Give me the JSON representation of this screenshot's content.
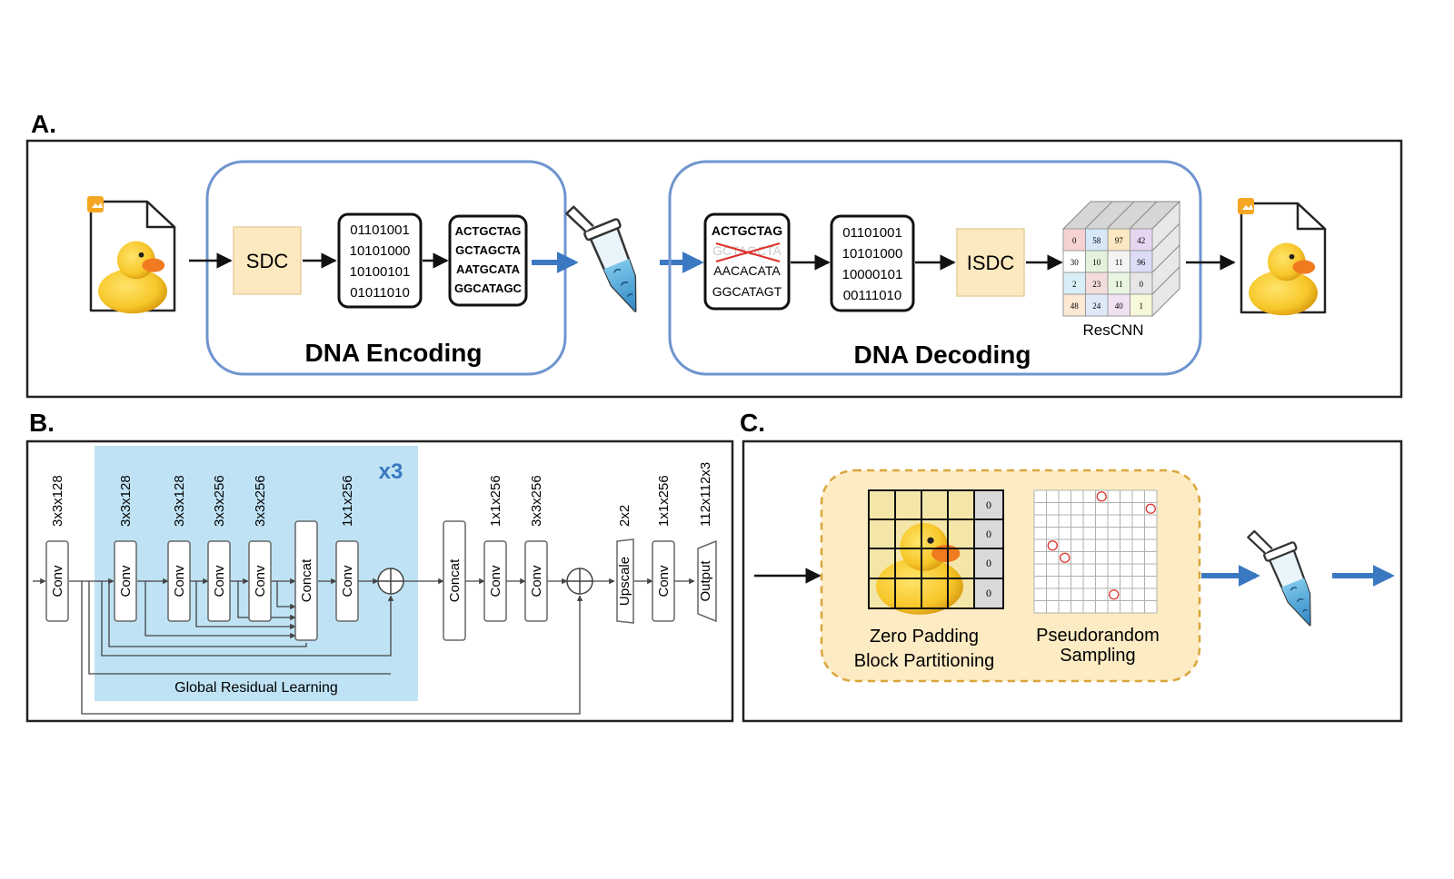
{
  "panels": {
    "a": {
      "label": "A."
    },
    "b": {
      "label": "B."
    },
    "c": {
      "label": "C."
    }
  },
  "encoding": {
    "title": "DNA Encoding",
    "sdc": "SDC",
    "binary": [
      "01101001",
      "10101000",
      "10100101",
      "01011010"
    ],
    "dna": [
      "ACTGCTAG",
      "GCTAGCTA",
      "AATGCATA",
      "GGCATAGC"
    ]
  },
  "decoding": {
    "title": "DNA Decoding",
    "isdc": "ISDC",
    "rescnn": "ResCNN",
    "dna": [
      "ACTGCTAG",
      "GCTAGCTA",
      "AACACATA",
      "GGCATAGT"
    ],
    "binary": [
      "01101001",
      "10101000",
      "10000101",
      "00111010"
    ],
    "grid": [
      "0",
      "58",
      "97",
      "42",
      "30",
      "10",
      "11",
      "96",
      "2",
      "23",
      "11",
      "0",
      "48",
      "24",
      "40",
      "1"
    ]
  },
  "network": {
    "repeat": "x3",
    "global_residual": "Global Residual Learning",
    "blocks": [
      {
        "label": "Conv",
        "shape": "3x3x128"
      },
      {
        "label": "Conv",
        "shape": "3x3x128"
      },
      {
        "label": "Conv",
        "shape": "3x3x128"
      },
      {
        "label": "Conv",
        "shape": "3x3x256"
      },
      {
        "label": "Conv",
        "shape": "3x3x256"
      },
      {
        "label": "Concat",
        "shape": ""
      },
      {
        "label": "Conv",
        "shape": "1x1x256"
      },
      {
        "label": "Concat",
        "shape": ""
      },
      {
        "label": "Conv",
        "shape": "1x1x256"
      },
      {
        "label": "Conv",
        "shape": "3x3x256"
      },
      {
        "label": "Upscale",
        "shape": "2x2"
      },
      {
        "label": "Conv",
        "shape": "1x1x256"
      },
      {
        "label": "Output",
        "shape": "112x112x3"
      }
    ]
  },
  "sampling": {
    "padding_label_1": "Zero Padding",
    "padding_label_2": "Block Partitioning",
    "sampling_label_1": "Pseudorandom",
    "sampling_label_2": "Sampling",
    "pad_values": [
      "0",
      "0",
      "0",
      "0"
    ]
  },
  "colors": {
    "accent_blue": "#3a78c2",
    "encode_box": "#6f95cf",
    "sdc_fill": "#fde9bf",
    "residual_fill": "#bfe3f4",
    "sampling_fill": "#fdebc3",
    "error_red": "#e0302a"
  }
}
